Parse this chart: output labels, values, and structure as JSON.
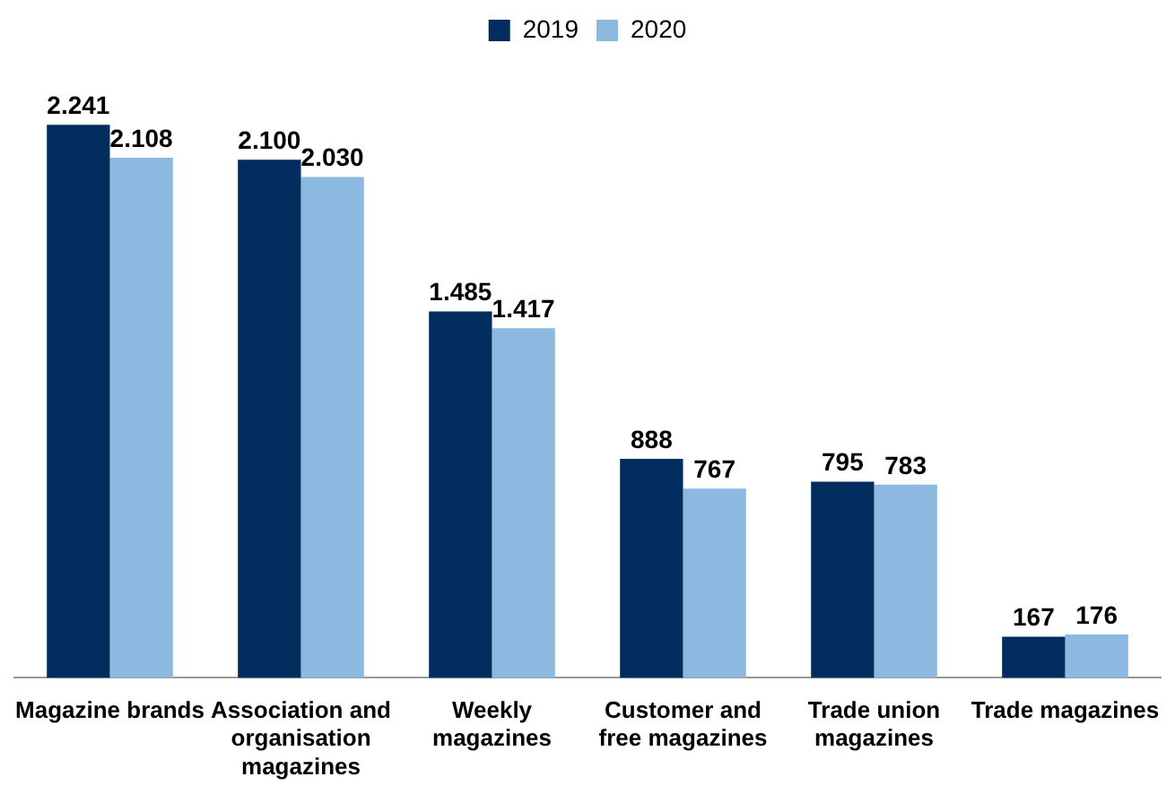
{
  "chart_data": {
    "type": "bar",
    "categories": [
      "Magazine brands",
      "Association and organisation magazines",
      "Weekly magazines",
      "Customer and free magazines",
      "Trade union magazines",
      "Trade magazines"
    ],
    "series": [
      {
        "name": "2019",
        "color": "#002d5e",
        "values": [
          2241,
          2100,
          1485,
          888,
          795,
          167
        ],
        "value_labels": [
          "2.241",
          "2.100",
          "1.485",
          "888",
          "795",
          "167"
        ]
      },
      {
        "name": "2020",
        "color": "#8cb9e0",
        "values": [
          2108,
          2030,
          1417,
          767,
          783,
          176
        ],
        "value_labels": [
          "2.108",
          "2.030",
          "1.417",
          "767",
          "783",
          "176"
        ]
      }
    ],
    "legend": "top",
    "grid": false,
    "tick_labels": "x"
  }
}
